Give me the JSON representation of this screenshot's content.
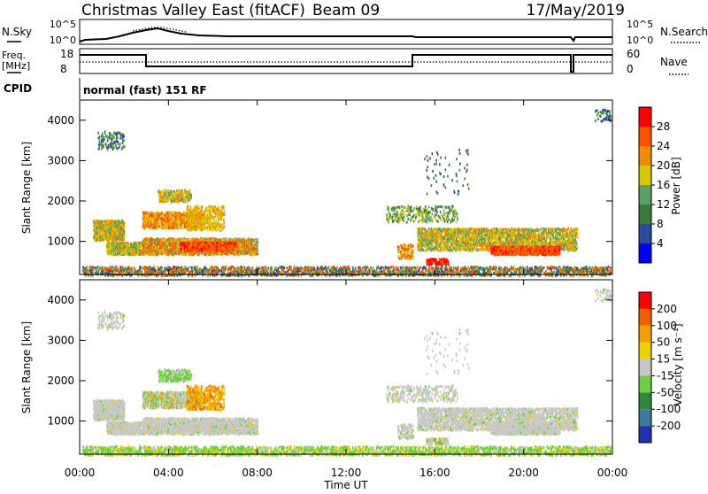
{
  "header": {
    "title": "Christmas Valley East (fitACF)",
    "beam": "Beam 09",
    "date": "17/May/2019"
  },
  "top_panels": {
    "nsky_label": "N.Sky",
    "nsky_ticks": [
      "10^5",
      "10^0"
    ],
    "nsearch_label": "N.Search",
    "nsearch_ticks": [
      "10^5",
      "10^0"
    ],
    "freq_label_1": "Freq.",
    "freq_label_2": "[MHz]",
    "freq_ticks": [
      "18",
      "8"
    ],
    "nave_label": "Nave",
    "nave_ticks": [
      "60",
      "0"
    ],
    "cpid_label": "CPID",
    "cpid_text": "normal (fast) 151 RF"
  },
  "chart_data": [
    {
      "type": "heatmap",
      "name": "power",
      "ylabel": "Slant Range [km]",
      "ylim": [
        180,
        4500
      ],
      "y_ticks": [
        "1000",
        "2000",
        "3000",
        "4000"
      ],
      "y_tick_values": [
        1000,
        2000,
        3000,
        4000
      ],
      "xlim": [
        0,
        24
      ],
      "x_tick_values": [
        0,
        4,
        8,
        12,
        16,
        20,
        24
      ],
      "colorbar_label": "Power [dB]",
      "colorbar_ticks": [
        "4",
        "8",
        "12",
        "16",
        "20",
        "24",
        "28"
      ],
      "colorbar_colors": [
        "#0000ff",
        "#2a4aa0",
        "#3a7a3a",
        "#5aa062",
        "#d8c80a",
        "#f08a00",
        "#ff5000",
        "#ff0000"
      ]
    },
    {
      "type": "heatmap",
      "name": "velocity",
      "ylabel": "Slant Range [km]",
      "ylim": [
        180,
        4500
      ],
      "y_ticks": [
        "1000",
        "2000",
        "3000",
        "4000"
      ],
      "y_tick_values": [
        1000,
        2000,
        3000,
        4000
      ],
      "xlim": [
        0,
        24
      ],
      "x_tick_values": [
        0,
        4,
        8,
        12,
        16,
        20,
        24
      ],
      "x_ticks": [
        "00:00",
        "04:00",
        "08:00",
        "12:00",
        "16:00",
        "20:00",
        "00:00"
      ],
      "xlabel": "Time UT",
      "colorbar_label": "Velocity [m s⁻¹]",
      "colorbar_ticks": [
        "200",
        "100",
        "50",
        "15",
        "-15",
        "-50",
        "-100",
        "-200"
      ],
      "colorbar_colors": [
        "#2030b0",
        "#3a7a9a",
        "#2e8a3a",
        "#6ad040",
        "#c8c8c8",
        "#f0d000",
        "#f0a000",
        "#f06000",
        "#ff0000"
      ]
    }
  ]
}
